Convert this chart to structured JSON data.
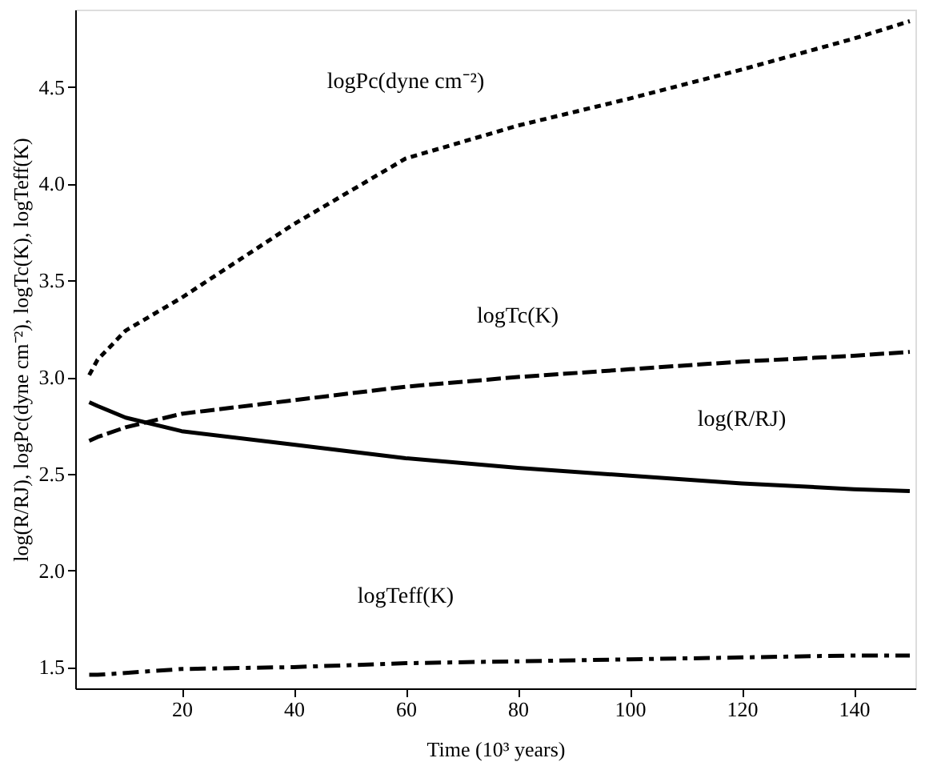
{
  "chart_data": {
    "type": "line",
    "xlabel": "Time (10³ years)",
    "ylabel": "log(R/RJ), logPc(dyne cm⁻²), logTc(K), logTeff(K)",
    "xlim": [
      1,
      151
    ],
    "ylim": [
      1.39,
      4.9
    ],
    "xticks": [
      20,
      40,
      60,
      80,
      100,
      120,
      140
    ],
    "yticks": [
      1.5,
      {
        "value": 2,
        "label": "2.0"
      },
      2.5,
      {
        "value": 3,
        "label": "3.0"
      },
      3.5,
      {
        "value": 4,
        "label": "4.0"
      },
      4.5
    ],
    "grid": false,
    "marker": "none",
    "x": [
      3.5,
      5,
      10,
      20,
      40,
      60,
      80,
      100,
      120,
      140,
      150
    ],
    "series": [
      {
        "name": "logPc(dyne cm⁻²)",
        "color": "#000000",
        "line_style": "dotted",
        "values": [
          3.01,
          3.09,
          3.24,
          3.41,
          3.79,
          4.13,
          4.3,
          4.44,
          4.59,
          4.75,
          4.84
        ]
      },
      {
        "name": "logTc(K)",
        "color": "#000000",
        "line_style": "dashed",
        "values": [
          2.67,
          2.69,
          2.74,
          2.81,
          2.88,
          2.95,
          3.0,
          3.04,
          3.08,
          3.11,
          3.13
        ]
      },
      {
        "name": "log(R/RJ)",
        "color": "#000000",
        "line_style": "solid",
        "values": [
          2.87,
          2.85,
          2.79,
          2.72,
          2.65,
          2.58,
          2.53,
          2.49,
          2.45,
          2.42,
          2.41
        ]
      },
      {
        "name": "logTeff(K)",
        "color": "#000000",
        "line_style": "dashdot",
        "values": [
          1.46,
          1.46,
          1.47,
          1.49,
          1.5,
          1.52,
          1.53,
          1.54,
          1.55,
          1.56,
          1.56
        ]
      }
    ]
  }
}
